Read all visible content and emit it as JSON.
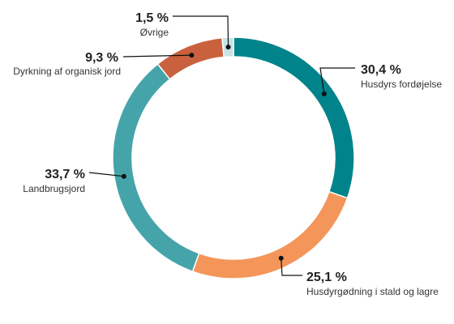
{
  "chart_data": {
    "type": "pie",
    "variant": "donut",
    "categories": [
      "Husdyrs fordøjelse",
      "Husdyrgødning i stald og lagre",
      "Landbrugsjord",
      "Dyrkning af organisk jord",
      "Øvrige"
    ],
    "values": [
      30.4,
      25.1,
      33.7,
      9.3,
      1.5
    ],
    "value_labels": [
      "30,4 %",
      "25,1 %",
      "33,7 %",
      "9,3 %",
      "1,5 %"
    ],
    "colors": [
      "#00838A",
      "#F4955A",
      "#45A4AA",
      "#C9613E",
      "#C6E3E5"
    ],
    "start_angle_deg": 0,
    "direction": "clockwise",
    "legend": "none"
  }
}
